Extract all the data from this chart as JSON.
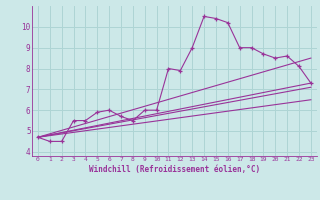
{
  "xlabel": "Windchill (Refroidissement éolien,°C)",
  "bg_color": "#cce8e8",
  "grid_color": "#aed4d4",
  "line_color": "#993399",
  "xlim": [
    -0.5,
    23.5
  ],
  "ylim": [
    3.8,
    11.0
  ],
  "yticks": [
    4,
    5,
    6,
    7,
    8,
    9,
    10
  ],
  "xticks": [
    0,
    1,
    2,
    3,
    4,
    5,
    6,
    7,
    8,
    9,
    10,
    11,
    12,
    13,
    14,
    15,
    16,
    17,
    18,
    19,
    20,
    21,
    22,
    23
  ],
  "series1_x": [
    0,
    1,
    2,
    3,
    4,
    5,
    6,
    7,
    8,
    9,
    10,
    11,
    12,
    13,
    14,
    15,
    16,
    17,
    18,
    19,
    20,
    21,
    22,
    23
  ],
  "series1_y": [
    4.7,
    4.5,
    4.5,
    5.5,
    5.5,
    5.9,
    6.0,
    5.7,
    5.5,
    6.0,
    6.0,
    8.0,
    7.9,
    9.0,
    10.5,
    10.4,
    10.2,
    9.0,
    9.0,
    8.7,
    8.5,
    8.6,
    8.1,
    7.3
  ],
  "line2_x": [
    0,
    23
  ],
  "line2_y": [
    4.7,
    7.3
  ],
  "line3_x": [
    0,
    23
  ],
  "line3_y": [
    4.7,
    8.5
  ],
  "line4_x": [
    0,
    23
  ],
  "line4_y": [
    4.7,
    7.1
  ],
  "line5_x": [
    0,
    23
  ],
  "line5_y": [
    4.7,
    6.5
  ]
}
